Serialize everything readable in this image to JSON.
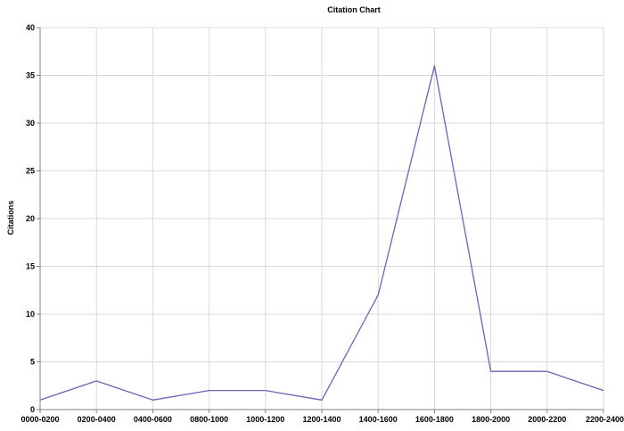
{
  "chart_data": {
    "type": "line",
    "title": "Citation Chart",
    "xlabel": "",
    "ylabel": "Citations",
    "ylim": [
      0,
      40
    ],
    "yticks": [
      0,
      5,
      10,
      15,
      20,
      25,
      30,
      35,
      40
    ],
    "grid": true,
    "legend": "none",
    "categories": [
      "0000-0200",
      "0200-0400",
      "0400-0600",
      "0800-1000",
      "1000-1200",
      "1200-1400",
      "1400-1600",
      "1600-1800",
      "1800-2000",
      "2000-2200",
      "2200-2400"
    ],
    "series": [
      {
        "values": [
          1,
          3,
          1,
          2,
          2,
          1,
          12,
          36,
          4,
          4,
          2
        ],
        "color": "#6b63b5"
      }
    ]
  }
}
